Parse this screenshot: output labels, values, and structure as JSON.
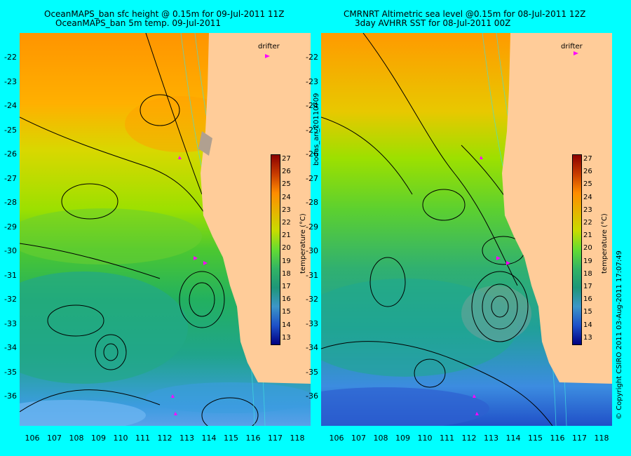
{
  "left": {
    "title_line1": "OceanMAPS_ban sfc height @ 0.15m for 09-Jul-2011 11Z",
    "title_line2": "OceanMAPS_ban 5m temp. 09-Jul-2011",
    "drifter_label": "drifter",
    "colorbar_label": "temperature (°C)"
  },
  "right": {
    "title_line1": "CMRNRT Altimetric sea level  @0.15m  for 08-Jul-2011 12Z",
    "title_line2": "3day AVHRR SST for 08-Jul-2011 00Z",
    "drifter_label": "drifter",
    "colorbar_label": "temperature (°C)"
  },
  "side_label_left": "bodas_an_20110709",
  "side_label_right": "© Copyright CSIRO 2011  03-Aug-2011 17:07:49",
  "lat_ticks": [
    "-22",
    "-23",
    "-24",
    "-25",
    "-26",
    "-27",
    "-28",
    "-29",
    "-30",
    "-31",
    "-32",
    "-33",
    "-34",
    "-35",
    "-36"
  ],
  "lon_ticks": [
    "106",
    "107",
    "108",
    "109",
    "110",
    "111",
    "112",
    "113",
    "114",
    "115",
    "116",
    "117",
    "118"
  ],
  "colorbar_ticks": [
    "27",
    "26",
    "25",
    "24",
    "23",
    "22",
    "21",
    "20",
    "19",
    "18",
    "17",
    "16",
    "15",
    "14",
    "13"
  ],
  "colors": {
    "background": "#00ffff",
    "land": "#ffcc99",
    "drifter": "#ff00ff",
    "contour": "#000000",
    "colorbar_stops": [
      "#8b0000",
      "#c83c00",
      "#ff8c00",
      "#e6b400",
      "#c8dc00",
      "#64dc32",
      "#32b464",
      "#1e9678",
      "#3c96c8",
      "#1e50c8",
      "#000080"
    ]
  }
}
